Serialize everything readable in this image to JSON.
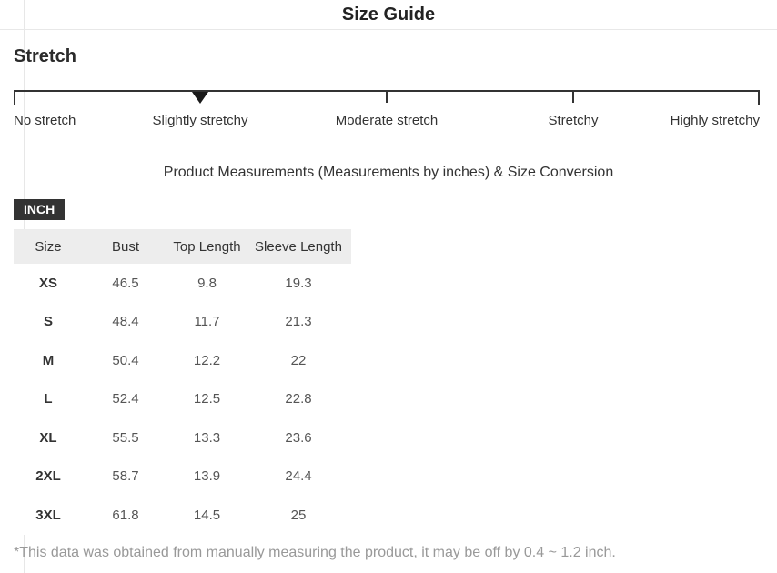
{
  "header": {
    "title": "Size Guide"
  },
  "stretch": {
    "heading": "Stretch",
    "selected_level": "Slightly stretchy",
    "levels": [
      {
        "label": "No stretch",
        "selected": false
      },
      {
        "label": "Slightly stretchy",
        "selected": true
      },
      {
        "label": "Moderate stretch",
        "selected": false
      },
      {
        "label": "Stretchy",
        "selected": false
      },
      {
        "label": "Highly stretchy",
        "selected": false
      }
    ]
  },
  "measurements": {
    "heading": "Product Measurements (Measurements by inches) & Size Conversion",
    "unit_label": "INCH"
  },
  "size_table": {
    "columns": [
      "Size",
      "Bust",
      "Top Length",
      "Sleeve Length"
    ],
    "rows": [
      {
        "size": "XS",
        "values": [
          "46.5",
          "9.8",
          "19.3"
        ]
      },
      {
        "size": "S",
        "values": [
          "48.4",
          "11.7",
          "21.3"
        ]
      },
      {
        "size": "M",
        "values": [
          "50.4",
          "12.2",
          "22"
        ]
      },
      {
        "size": "L",
        "values": [
          "52.4",
          "12.5",
          "22.8"
        ]
      },
      {
        "size": "XL",
        "values": [
          "55.5",
          "13.3",
          "23.6"
        ]
      },
      {
        "size": "2XL",
        "values": [
          "58.7",
          "13.9",
          "24.4"
        ]
      },
      {
        "size": "3XL",
        "values": [
          "61.8",
          "14.5",
          "25"
        ]
      }
    ]
  },
  "footnote": "*This data was obtained from manually measuring the product, it may be off by 0.4 ~ 1.2 inch.",
  "colors": {
    "scale_bar": "#333333",
    "badge_bg": "#333333",
    "badge_text": "#ffffff",
    "table_header_bg": "#ededed",
    "footnote_text": "#999999"
  }
}
